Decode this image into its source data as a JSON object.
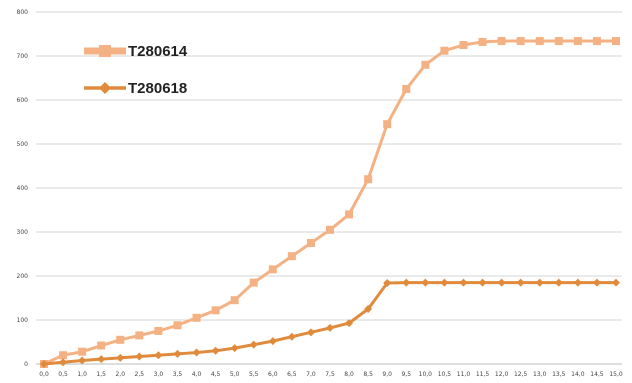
{
  "chart_data": {
    "type": "line",
    "title": "",
    "xlabel": "",
    "ylabel": "",
    "x": [
      "0,0",
      "0,5",
      "1,0",
      "1,5",
      "2,0",
      "2,5",
      "3,0",
      "3,5",
      "4,0",
      "4,5",
      "5,0",
      "5,5",
      "6,0",
      "6,5",
      "7,0",
      "7,5",
      "8,0",
      "8,5",
      "9,0",
      "9,5",
      "10,0",
      "10,5",
      "11,0",
      "11,5",
      "12,0",
      "12,5",
      "13,0",
      "13,5",
      "14,0",
      "14,5",
      "15,0"
    ],
    "ylim": [
      0,
      800
    ],
    "yticks": [
      "0",
      "100",
      "200",
      "300",
      "400",
      "500",
      "600",
      "700",
      "800"
    ],
    "grid": true,
    "legend": "top-left",
    "series": [
      {
        "name": "T280614",
        "color": "#f4b183",
        "marker": "square",
        "values": [
          0,
          20,
          28,
          42,
          55,
          65,
          75,
          88,
          105,
          122,
          145,
          185,
          215,
          245,
          275,
          305,
          340,
          420,
          545,
          625,
          680,
          712,
          725,
          732,
          734,
          734,
          734,
          734,
          734,
          734,
          734
        ]
      },
      {
        "name": "T280618",
        "color": "#e08a3c",
        "marker": "diamond",
        "values": [
          0,
          4,
          8,
          11,
          14,
          17,
          20,
          23,
          26,
          30,
          36,
          44,
          52,
          62,
          72,
          82,
          93,
          125,
          184,
          185,
          185,
          185,
          185,
          185,
          185,
          185,
          185,
          185,
          185,
          185,
          185
        ]
      }
    ]
  }
}
